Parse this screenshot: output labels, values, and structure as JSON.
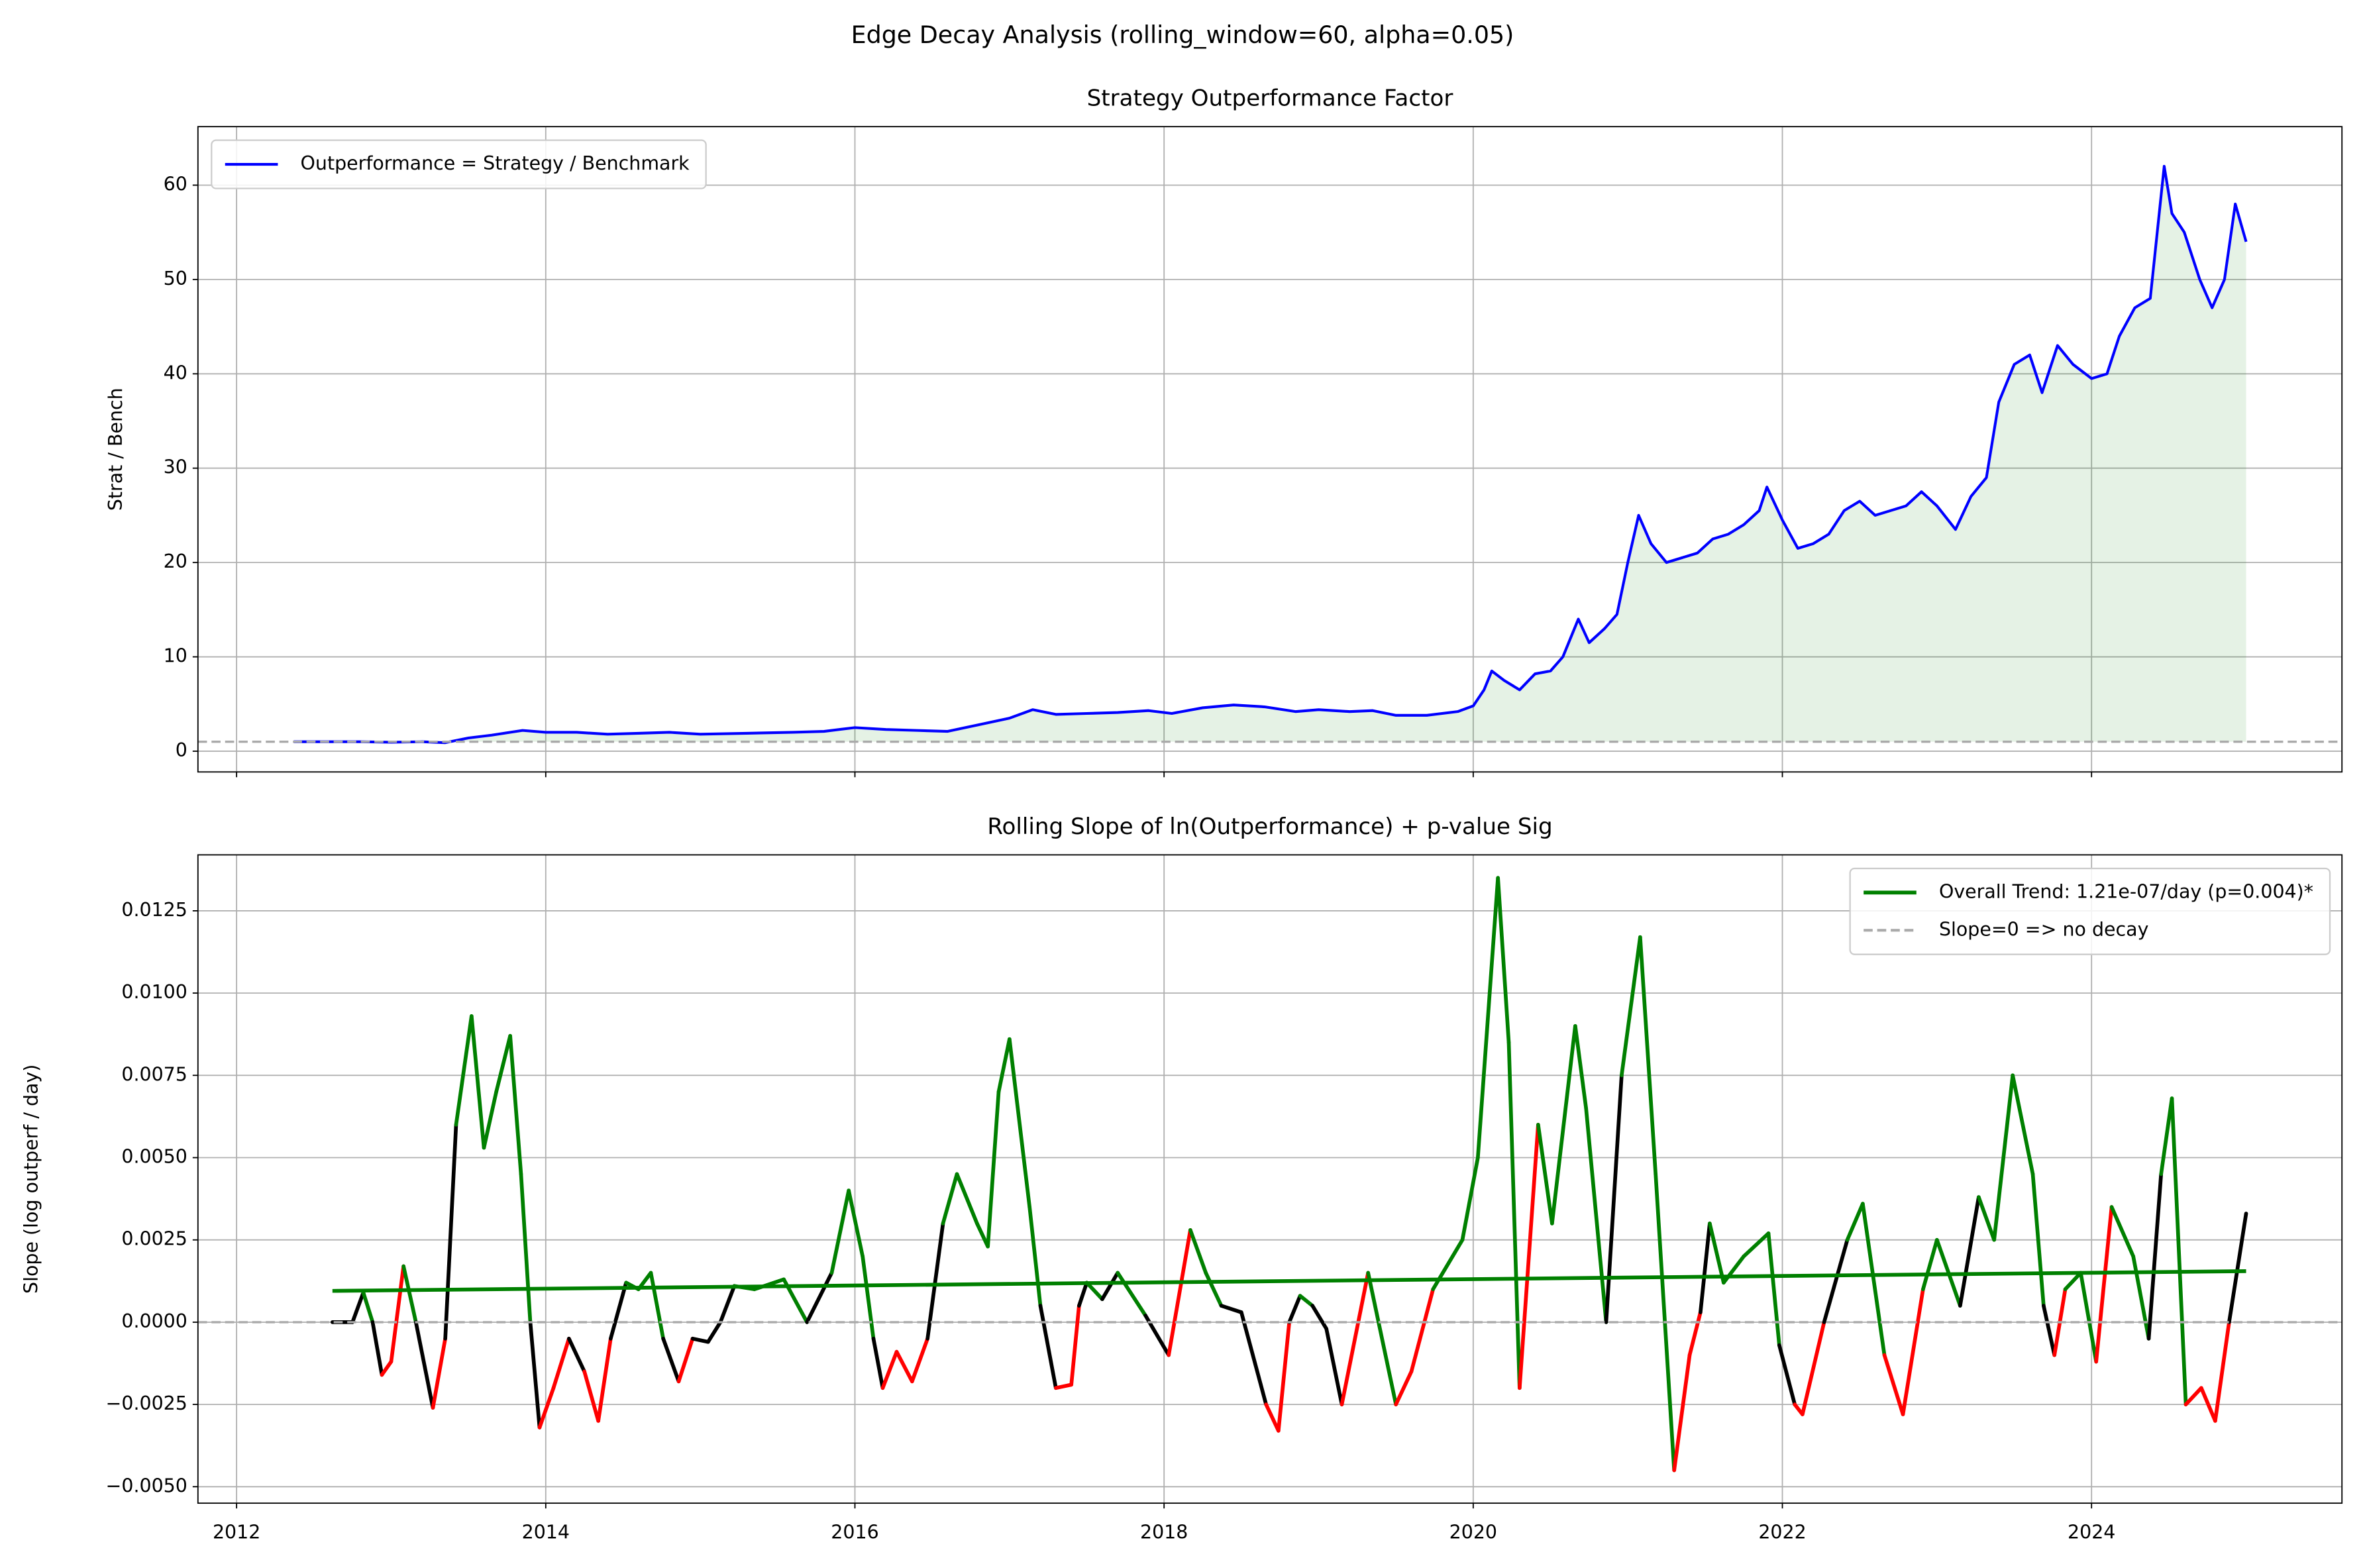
{
  "suptitle": "Edge Decay Analysis (rolling_window=60, alpha=0.05)",
  "chart_data": [
    {
      "type": "line",
      "title": "Strategy Outperformance Factor",
      "ylabel": "Strat / Bench",
      "xlim": [
        2011.75,
        2025.62
      ],
      "xticks": [
        2012,
        2014,
        2016,
        2018,
        2020,
        2022,
        2024
      ],
      "show_xtick_labels": false,
      "ylim": [
        -2.2,
        66.2
      ],
      "yticks": [
        0,
        10,
        20,
        30,
        40,
        50,
        60
      ],
      "grid": true,
      "legend": "upper left",
      "baseline": 1,
      "baseline_color": "#aaaaaa",
      "fill_color": "green",
      "series": [
        {
          "name": "Outperformance = Strategy / Benchmark",
          "color": "blue",
          "x": [
            2012.37,
            2012.6,
            2012.8,
            2013.0,
            2013.2,
            2013.35,
            2013.5,
            2013.65,
            2013.85,
            2014.0,
            2014.2,
            2014.4,
            2014.6,
            2014.8,
            2015.0,
            2015.3,
            2015.6,
            2015.8,
            2016.0,
            2016.2,
            2016.4,
            2016.6,
            2016.8,
            2017.0,
            2017.15,
            2017.3,
            2017.5,
            2017.7,
            2017.9,
            2018.05,
            2018.25,
            2018.45,
            2018.65,
            2018.85,
            2019.0,
            2019.2,
            2019.35,
            2019.5,
            2019.7,
            2019.9,
            2020.0,
            2020.07,
            2020.12,
            2020.2,
            2020.3,
            2020.4,
            2020.5,
            2020.58,
            2020.68,
            2020.75,
            2020.85,
            2020.93,
            2021.0,
            2021.07,
            2021.15,
            2021.25,
            2021.35,
            2021.45,
            2021.55,
            2021.65,
            2021.75,
            2021.85,
            2021.9,
            2022.0,
            2022.1,
            2022.2,
            2022.3,
            2022.4,
            2022.5,
            2022.6,
            2022.7,
            2022.8,
            2022.9,
            2023.0,
            2023.12,
            2023.22,
            2023.32,
            2023.4,
            2023.5,
            2023.6,
            2023.68,
            2023.78,
            2023.88,
            2024.0,
            2024.1,
            2024.18,
            2024.28,
            2024.38,
            2024.47,
            2024.52,
            2024.6,
            2024.7,
            2024.78,
            2024.86,
            2024.93,
            2025.0
          ],
          "values": [
            1.0,
            1.0,
            1.0,
            0.95,
            1.0,
            0.9,
            1.4,
            1.7,
            2.2,
            2.0,
            2.0,
            1.8,
            1.9,
            2.0,
            1.8,
            1.9,
            2.0,
            2.1,
            2.5,
            2.3,
            2.2,
            2.1,
            2.8,
            3.5,
            4.4,
            3.9,
            4.0,
            4.1,
            4.3,
            4.0,
            4.6,
            4.9,
            4.7,
            4.2,
            4.4,
            4.2,
            4.3,
            3.8,
            3.8,
            4.2,
            4.8,
            6.5,
            8.5,
            7.5,
            6.5,
            8.2,
            8.5,
            10,
            14,
            11.5,
            13,
            14.5,
            20,
            25,
            22,
            20,
            20.5,
            21,
            22.5,
            23,
            24,
            25.5,
            28,
            24.5,
            21.5,
            22,
            23,
            25.5,
            26.5,
            25,
            25.5,
            26,
            27.5,
            26,
            23.5,
            27,
            29,
            37,
            41,
            42,
            38,
            43,
            41,
            39.5,
            40,
            44,
            47,
            48,
            62,
            57,
            55,
            50,
            47,
            50,
            58,
            54
          ]
        }
      ]
    },
    {
      "type": "line",
      "title": "Rolling Slope of ln(Outperformance) + p-value Sig",
      "ylabel": "Slope (log outperf / day)",
      "xlim": [
        2011.75,
        2025.62
      ],
      "xticks": [
        2012,
        2014,
        2016,
        2018,
        2020,
        2022,
        2024
      ],
      "show_xtick_labels": true,
      "ylim": [
        -0.0055,
        0.0142
      ],
      "yticks": [
        {
          "value": -0.005,
          "label": "−0.0050"
        },
        {
          "value": -0.0025,
          "label": "−0.0025"
        },
        {
          "value": 0,
          "label": "0.0000"
        },
        {
          "value": 0.0025,
          "label": "0.0025"
        },
        {
          "value": 0.005,
          "label": "0.0050"
        },
        {
          "value": 0.0075,
          "label": "0.0075"
        },
        {
          "value": 0.01,
          "label": "0.0100"
        },
        {
          "value": 0.0125,
          "label": "0.0125"
        }
      ],
      "grid": true,
      "legend": "upper right",
      "series": [
        {
          "x": [
            2012.62,
            2012.75,
            2012.82,
            2012.88,
            2012.94,
            2013.0,
            2013.08,
            2013.16,
            2013.27,
            2013.35,
            2013.42,
            2013.52,
            2013.6,
            2013.68,
            2013.77,
            2013.84,
            2013.9,
            2013.96,
            2014.05,
            2014.15,
            2014.25,
            2014.34,
            2014.42,
            2014.52,
            2014.6,
            2014.68,
            2014.76,
            2014.86,
            2014.95,
            2015.05,
            2015.13,
            2015.22,
            2015.35,
            2015.54,
            2015.69,
            2015.85,
            2015.96,
            2016.05,
            2016.12,
            2016.18,
            2016.27,
            2016.37,
            2016.47,
            2016.57,
            2016.66,
            2016.79,
            2016.86,
            2016.93,
            2017.0,
            2017.13,
            2017.2,
            2017.3,
            2017.4,
            2017.45,
            2017.5,
            2017.6,
            2017.7,
            2017.88,
            2018.03,
            2018.17,
            2018.27,
            2018.37,
            2018.5,
            2018.66,
            2018.74,
            2018.81,
            2018.88,
            2018.96,
            2019.05,
            2019.15,
            2019.32,
            2019.5,
            2019.6,
            2019.74,
            2019.93,
            2020.03,
            2020.16,
            2020.23,
            2020.3,
            2020.42,
            2020.51,
            2020.66,
            2020.73,
            2020.86,
            2020.96,
            2021.08,
            2021.18,
            2021.3,
            2021.4,
            2021.47,
            2021.53,
            2021.62,
            2021.75,
            2021.91,
            2021.98,
            2022.08,
            2022.13,
            2022.27,
            2022.42,
            2022.52,
            2022.66,
            2022.78,
            2022.91,
            2023.0,
            2023.15,
            2023.27,
            2023.37,
            2023.49,
            2023.62,
            2023.69,
            2023.76,
            2023.83,
            2023.93,
            2024.03,
            2024.13,
            2024.27,
            2024.37,
            2024.45,
            2024.52,
            2024.61,
            2024.71,
            2024.8,
            2024.89,
            2025.0
          ],
          "values": [
            0.0,
            0.0,
            0.0009,
            0.0,
            -0.0016,
            -0.0012,
            0.0017,
            0.0,
            -0.0026,
            -0.0005,
            0.006,
            0.0093,
            0.0053,
            0.007,
            0.0087,
            0.0045,
            0.0,
            -0.0032,
            -0.002,
            -0.0005,
            -0.0015,
            -0.003,
            -0.0005,
            0.0012,
            0.001,
            0.0015,
            -0.0005,
            -0.0018,
            -0.0005,
            -0.0006,
            0.0,
            0.0011,
            0.001,
            0.0013,
            0.0,
            0.0015,
            0.004,
            0.002,
            -0.0005,
            -0.002,
            -0.0009,
            -0.0018,
            -0.0005,
            0.003,
            0.0045,
            0.003,
            0.0023,
            0.007,
            0.0086,
            0.0035,
            0.0005,
            -0.002,
            -0.0019,
            0.0005,
            0.0012,
            0.0007,
            0.0015,
            0.0002,
            -0.001,
            0.0028,
            0.0015,
            0.0005,
            0.0003,
            -0.0025,
            -0.0033,
            0.0,
            0.0008,
            0.0005,
            -0.0002,
            -0.0025,
            0.0015,
            -0.0025,
            -0.0015,
            0.001,
            0.0025,
            0.005,
            0.0135,
            0.0085,
            -0.002,
            0.006,
            0.003,
            0.009,
            0.0065,
            0.0,
            0.0075,
            0.0117,
            0.0045,
            -0.0045,
            -0.001,
            0.0003,
            0.003,
            0.0012,
            0.002,
            0.0027,
            -0.0007,
            -0.0025,
            -0.0028,
            0.0,
            0.0025,
            0.0036,
            -0.001,
            -0.0028,
            0.001,
            0.0025,
            0.0005,
            0.0038,
            0.0025,
            0.0075,
            0.0045,
            0.0005,
            -0.001,
            0.001,
            0.0015,
            -0.0012,
            0.0035,
            0.002,
            -0.0005,
            0.0045,
            0.0068,
            -0.0025,
            -0.002,
            -0.003,
            0.0,
            0.0033
          ],
          "colors": [
            "black",
            "black",
            "green",
            "black",
            "red",
            "red",
            "green",
            "black",
            "red",
            "black",
            "green",
            "green",
            "green",
            "green",
            "green",
            "green",
            "black",
            "red",
            "red",
            "black",
            "red",
            "red",
            "black",
            "green",
            "green",
            "green",
            "black",
            "red",
            "black",
            "black",
            "black",
            "green",
            "green",
            "green",
            "black",
            "green",
            "green",
            "green",
            "black",
            "red",
            "red",
            "red",
            "black",
            "green",
            "green",
            "green",
            "green",
            "green",
            "green",
            "green",
            "black",
            "red",
            "red",
            "black",
            "green",
            "black",
            "green",
            "black",
            "red",
            "green",
            "green",
            "black",
            "black",
            "red",
            "red",
            "black",
            "green",
            "black",
            "black",
            "red",
            "green",
            "red",
            "red",
            "green",
            "green",
            "green",
            "green",
            "green",
            "red",
            "green",
            "green",
            "green",
            "green",
            "black",
            "green",
            "green",
            "green",
            "red",
            "red",
            "black",
            "green",
            "green",
            "green",
            "green",
            "black",
            "red",
            "red",
            "black",
            "green",
            "green",
            "red",
            "red",
            "green",
            "green",
            "black",
            "green",
            "green",
            "green",
            "green",
            "black",
            "red",
            "green",
            "green",
            "red",
            "green",
            "green",
            "black",
            "green",
            "green",
            "red",
            "red",
            "red",
            "black",
            "green"
          ]
        },
        {
          "name": "Overall Trend: 1.21e-07/day (p=0.004)*",
          "color": "green",
          "x": [
            2012.62,
            2025.0
          ],
          "values": [
            0.00095,
            0.00155
          ]
        },
        {
          "name": "Slope=0 => no decay",
          "color": "#aaaaaa",
          "dashed": true,
          "hline": 0
        }
      ]
    }
  ]
}
